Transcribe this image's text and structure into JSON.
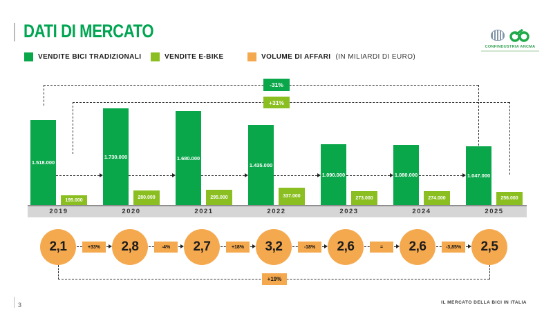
{
  "header": {
    "title": "DATI DI MERCATO",
    "logo_text": "CONFINDUSTRIA ANCMA"
  },
  "legend": {
    "items": [
      {
        "label": "VENDITE BICI TRADIZIONALI",
        "color": "#0aa64a"
      },
      {
        "label": "VENDITE E-BIKE",
        "color": "#8bbf21"
      },
      {
        "label": "VOLUME DI AFFARI",
        "sublabel": "(IN MILIARDI DI EURO)",
        "color": "#f5a94f"
      }
    ]
  },
  "chart_data": {
    "type": "bar",
    "title": "DATI DI MERCATO",
    "categories": [
      "2019",
      "2020",
      "2021",
      "2022",
      "2023",
      "2024",
      "2025"
    ],
    "series": [
      {
        "name": "VENDITE BICI TRADIZIONALI",
        "color": "#0aa64a",
        "values": [
          1518000,
          1730000,
          1680000,
          1435000,
          1090000,
          1080000,
          1047000
        ],
        "labels": [
          "1.518.000",
          "1.730.000",
          "1.680.000",
          "1.435.000",
          "1.090.000",
          "1.080.000",
          "1.047.000"
        ]
      },
      {
        "name": "VENDITE E-BIKE",
        "color": "#8bbf21",
        "values": [
          195000,
          280000,
          295000,
          337000,
          273000,
          274000,
          256000
        ],
        "labels": [
          "195.000",
          "280.000",
          "295.000",
          "337.000",
          "273.000",
          "274.000",
          "256.000"
        ]
      },
      {
        "name": "VOLUME DI AFFARI (IN MILIARDI DI EURO)",
        "color": "#f5a94f",
        "values": [
          2.1,
          2.8,
          2.7,
          3.2,
          2.6,
          2.6,
          2.5
        ],
        "labels": [
          "2,1",
          "2,8",
          "2,7",
          "3,2",
          "2,6",
          "2,6",
          "2,5"
        ]
      }
    ],
    "step_changes_volume": [
      "+33%",
      "-4%",
      "+18%",
      "-18%",
      "=",
      "-3,85%"
    ],
    "span_annotations": [
      {
        "series": "VENDITE BICI TRADIZIONALI",
        "from": "2019",
        "to": "2025",
        "label": "-31%",
        "color": "#0aa64a"
      },
      {
        "series": "VENDITE E-BIKE",
        "from": "2019",
        "to": "2025",
        "label": "+31%",
        "color": "#8bbf21"
      },
      {
        "series": "VOLUME DI AFFARI",
        "from": "2019",
        "to": "2025",
        "label": "+19%",
        "color": "#f5a94f"
      }
    ],
    "layout_hints": {
      "grid": false,
      "legend_position": "top",
      "axis_band_color": "#d6d6d6"
    }
  },
  "footer": {
    "page_number": "3",
    "right_text": "IL MERCATO DELLA BICI IN ITALIA"
  }
}
